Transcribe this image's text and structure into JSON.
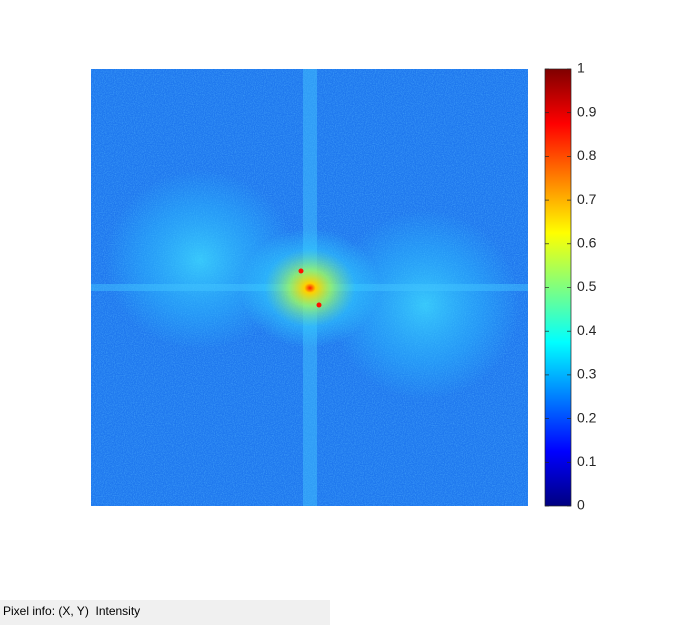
{
  "colorbar": {
    "lim": [
      0,
      1
    ],
    "ticks": [
      0,
      0.1,
      0.2,
      0.3,
      0.4,
      0.5,
      0.6,
      0.7,
      0.8,
      0.9,
      1
    ]
  },
  "status_bar": {
    "text": "Pixel info: (X, Y)  Intensity"
  }
}
